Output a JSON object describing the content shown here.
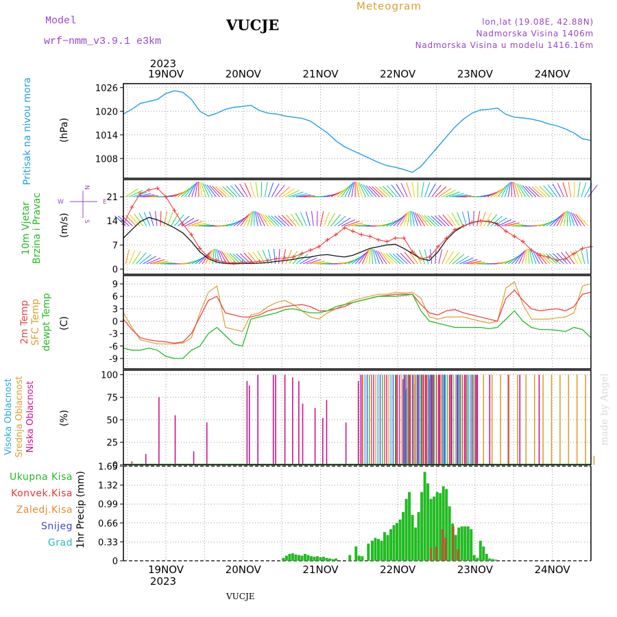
{
  "header": {
    "model_label": "Model",
    "model_name": "wrf−nmm_v3.9.1 e3km",
    "station": "VUCJE",
    "product": "Meteogram",
    "lonlat": "lon,lat (19.08E, 42.88N)",
    "elevation": "Nadmorska Visina 1406m",
    "model_elevation": "Nadmorska Visina u modelu 1416.16m",
    "footer_station": "VUCJE",
    "watermark": "made by Angel"
  },
  "colors": {
    "pressure": "#1fa0e0",
    "wind_label": "#22bb22",
    "wind_speed": "#111111",
    "wind_gust": "#ee3333",
    "temp_2m": "#ee4444",
    "temp_sfc": "#d9a030",
    "dewpoint": "#22bb22",
    "cloud_high": "#22aadd",
    "cloud_mid": "#d9a030",
    "cloud_low": "#cc1188",
    "precip_total": "#22bb22",
    "precip_conv": "#ee3333",
    "precip_frz": "#ee8833",
    "precip_snow": "#4444dd",
    "precip_hail": "#22bbbb",
    "title_purple": "#9944cc",
    "meteogram_gold": "#d9a030"
  },
  "chart_data": [
    {
      "type": "line",
      "name": "sea-level-pressure",
      "ylabel": "Pritisak na nivou mora",
      "unit": "(hPa)",
      "yticks": [
        1008,
        1014,
        1020,
        1026
      ],
      "ylim": [
        1003,
        1027
      ],
      "x_day_labels": [
        "19NOV",
        "20NOV",
        "21NOV",
        "22NOV",
        "23NOV",
        "24NOV"
      ],
      "top_year": "2023",
      "bottom_year": "2023",
      "series": [
        {
          "values": [
            1019.3,
            1020.5,
            1022.0,
            1022.5,
            1023.0,
            1024.5,
            1025.2,
            1024.8,
            1023.0,
            1020.0,
            1018.8,
            1019.5,
            1020.5,
            1021.0,
            1021.2,
            1021.5,
            1020.2,
            1019.5,
            1019.3,
            1018.8,
            1018.5,
            1018.2,
            1017.5,
            1016.0,
            1014.5,
            1012.5,
            1011.0,
            1010.0,
            1009.0,
            1008.0,
            1007.0,
            1006.2,
            1005.8,
            1005.2,
            1004.5,
            1006.0,
            1008.5,
            1011.0,
            1013.5,
            1016.0,
            1018.0,
            1019.5,
            1020.3,
            1020.5,
            1020.8,
            1019.2,
            1018.5,
            1018.3,
            1018.0,
            1017.5,
            1016.8,
            1016.3,
            1015.5,
            1014.5,
            1013.0,
            1012.6
          ]
        }
      ]
    },
    {
      "type": "line",
      "name": "wind-10m",
      "ylabel": "10m Vjetar Brzina i Pravac",
      "unit": "(m/s)",
      "compass": {
        "n": "N",
        "s": "S",
        "e": "E",
        "w": "W"
      },
      "yticks": [
        0,
        7,
        14,
        21
      ],
      "ylim": [
        -1.5,
        26
      ],
      "series": [
        {
          "name": "speed",
          "values": [
            9.0,
            11.5,
            13.8,
            15.0,
            14.3,
            13.2,
            12.0,
            10.5,
            8.0,
            5.0,
            3.0,
            2.0,
            1.6,
            1.5,
            1.6,
            1.6,
            1.7,
            1.9,
            2.2,
            2.5,
            2.8,
            3.3,
            3.5,
            4.0,
            4.2,
            3.8,
            3.5,
            4.0,
            5.0,
            6.0,
            6.5,
            7.0,
            7.2,
            6.0,
            4.5,
            3.0,
            2.5,
            5.0,
            8.5,
            11.0,
            12.5,
            13.5,
            14.0,
            13.8,
            13.2,
            null,
            null,
            null,
            null,
            null,
            null,
            null,
            null,
            null,
            null,
            null
          ]
        },
        {
          "name": "gust",
          "values": [
            13.0,
            18.0,
            22.0,
            23.0,
            23.5,
            21.0,
            17.0,
            13.0,
            10.0,
            6.0,
            3.5,
            2.5,
            2.0,
            1.8,
            2.0,
            2.0,
            2.2,
            2.5,
            3.0,
            3.2,
            3.5,
            4.5,
            5.5,
            6.5,
            8.5,
            10.0,
            12.0,
            11.0,
            10.0,
            9.5,
            8.5,
            8.0,
            9.0,
            9.0,
            5.0,
            3.0,
            3.5,
            6.5,
            9.0,
            11.5,
            12.5,
            13.5,
            14.0,
            13.8,
            13.0,
            11.0,
            9.5,
            8.0,
            5.5,
            4.0,
            3.5,
            2.5,
            3.0,
            4.5,
            6.0,
            6.5
          ]
        }
      ],
      "barb_bands": [
        21,
        12.5,
        1.5
      ]
    },
    {
      "type": "line",
      "name": "temperatures",
      "ylabel_lines": [
        "2m Temp",
        "SFC Temp",
        "dewpt Temp"
      ],
      "unit": "(C)",
      "yticks": [
        -9,
        -6,
        -3,
        0,
        3,
        6,
        9
      ],
      "ylim": [
        -11.5,
        11
      ],
      "series": [
        {
          "name": "2m Temp",
          "values": [
            0.5,
            -2.0,
            -4.0,
            -4.5,
            -4.8,
            -5.0,
            -5.3,
            -5.0,
            -3.0,
            1.0,
            5.0,
            6.0,
            2.0,
            1.5,
            1.0,
            1.0,
            1.5,
            2.5,
            3.0,
            3.5,
            3.8,
            4.0,
            3.5,
            2.5,
            2.5,
            3.0,
            3.5,
            4.5,
            5.0,
            5.5,
            6.0,
            6.2,
            6.5,
            6.5,
            6.5,
            4.0,
            2.0,
            1.5,
            2.5,
            2.8,
            2.0,
            1.5,
            1.0,
            0.5,
            0.0,
            5.5,
            7.5,
            5.0,
            3.0,
            2.5,
            2.8,
            3.0,
            2.5,
            3.5,
            6.5,
            7.0
          ]
        },
        {
          "name": "SFC Temp",
          "values": [
            2.0,
            -1.5,
            -4.5,
            -5.0,
            -5.5,
            -5.5,
            -5.5,
            -5.3,
            -4.0,
            2.0,
            7.0,
            8.5,
            -1.5,
            -2.0,
            -2.5,
            1.5,
            2.0,
            3.5,
            4.5,
            5.0,
            4.0,
            2.5,
            1.0,
            0.5,
            2.0,
            3.0,
            4.0,
            5.0,
            5.5,
            6.0,
            6.5,
            6.5,
            7.0,
            6.8,
            7.0,
            5.5,
            1.0,
            0.5,
            1.0,
            1.0,
            1.0,
            0.5,
            0.0,
            -0.5,
            0.0,
            8.0,
            9.5,
            4.0,
            0.5,
            0.5,
            0.5,
            0.8,
            1.0,
            2.0,
            8.5,
            9.0
          ]
        },
        {
          "name": "dewpt Temp",
          "values": [
            -6.5,
            -7.0,
            -7.0,
            -6.5,
            -7.0,
            -8.5,
            -9.0,
            -9.0,
            -7.0,
            -6.0,
            -3.0,
            -1.5,
            -3.5,
            -5.5,
            -6.0,
            0.5,
            1.0,
            1.5,
            2.0,
            2.8,
            3.0,
            2.5,
            2.0,
            2.0,
            2.5,
            3.5,
            4.0,
            4.5,
            5.0,
            5.5,
            6.0,
            6.0,
            6.0,
            6.2,
            6.5,
            2.5,
            0.0,
            -0.5,
            -1.0,
            -1.5,
            -1.5,
            -1.5,
            -1.5,
            -1.8,
            -1.5,
            0.5,
            2.5,
            0.0,
            -1.5,
            -2.0,
            -2.0,
            -2.2,
            -2.5,
            -1.5,
            -2.0,
            -4.0
          ]
        }
      ]
    },
    {
      "type": "bar",
      "name": "cloudiness",
      "ylabel_lines": [
        "Visoka Oblacnost",
        "Srednja Oblacnost",
        "Niska Oblacnost"
      ],
      "unit": "(%)",
      "yticks": [
        0,
        25,
        50,
        75,
        100
      ],
      "ylim": [
        0,
        105
      ],
      "series": [
        {
          "name": "Niska Oblacnost",
          "x": [
            0.06,
            0.24,
            0.41,
            0.62,
            0.86,
            1.03,
            1.33,
            1.55,
            1.58,
            1.69,
            1.89,
            1.92,
            2.04,
            2.14,
            2.22,
            2.27,
            2.43,
            2.53,
            2.58,
            2.83,
            2.88,
            2.99,
            3.04,
            3.48,
            3.57,
            3.59,
            3.61,
            3.65,
            3.72,
            3.76,
            3.81,
            3.83,
            3.87,
            3.91,
            3.93,
            3.96,
            4.04,
            4.08,
            4.11,
            4.18,
            4.27,
            4.31,
            4.38,
            4.47,
            4.52,
            4.69,
            4.93,
            5.08,
            5.33,
            6.67
          ],
          "values": [
            4,
            12,
            75,
            55,
            15,
            47,
            0,
            93,
            88,
            100,
            100,
            100,
            100,
            97,
            93,
            68,
            63,
            52,
            72,
            47,
            0,
            93,
            100,
            100,
            95,
            100,
            85,
            100,
            90,
            100,
            100,
            100,
            100,
            95,
            100,
            100,
            100,
            100,
            100,
            100,
            100,
            100,
            100,
            100,
            100,
            100,
            100,
            100,
            100,
            10
          ]
        },
        {
          "name": "Srednja Oblacnost",
          "x": [
            3.63,
            3.73,
            3.84,
            3.95,
            4.06,
            4.17,
            4.28,
            4.39,
            4.5,
            4.61,
            4.72,
            4.83,
            4.94,
            5.05,
            5.16,
            5.27,
            5.38,
            5.49,
            5.6,
            5.71,
            5.82,
            5.93,
            6.04
          ],
          "values": [
            100,
            100,
            100,
            100,
            100,
            100,
            100,
            100,
            100,
            100,
            100,
            100,
            100,
            100,
            100,
            100,
            100,
            100,
            100,
            100,
            100,
            100,
            10
          ]
        },
        {
          "name": "Visoka Oblacnost",
          "x": [
            3.6,
            3.7,
            3.8,
            3.9,
            4.0,
            4.1,
            4.2,
            4.3,
            4.4,
            4.5
          ],
          "values": [
            83,
            100,
            100,
            100,
            100,
            100,
            100,
            100,
            100,
            100
          ]
        }
      ]
    },
    {
      "type": "bar",
      "name": "precipitation-1hr",
      "ylabel": "1hr Precip",
      "unit": "(mm)",
      "legend": [
        "Ukupna Kisa",
        "Konvek.Kisa",
        "Zaledj.Kisa",
        "Snijeg",
        "Grad"
      ],
      "yticks": [
        0,
        0.33,
        0.66,
        0.99,
        1.32,
        1.65
      ],
      "ylim": [
        0,
        1.65
      ],
      "series": [
        {
          "name": "Ukupna Kisa",
          "x": [
            2.02,
            2.06,
            2.1,
            2.14,
            2.18,
            2.22,
            2.26,
            2.3,
            2.34,
            2.38,
            2.42,
            2.46,
            2.5,
            2.54,
            2.58,
            2.62,
            2.66,
            2.7,
            2.88,
            2.96,
            3.0,
            3.04,
            3.12,
            3.17,
            3.21,
            3.25,
            3.29,
            3.33,
            3.37,
            3.41,
            3.45,
            3.49,
            3.53,
            3.57,
            3.61,
            3.65,
            3.69,
            3.73,
            3.77,
            3.81,
            3.85,
            3.89,
            3.93,
            3.97,
            4.01,
            4.05,
            4.09,
            4.13,
            4.17,
            4.21,
            4.25,
            4.29,
            4.33,
            4.37,
            4.41,
            4.45,
            4.49,
            4.53,
            4.57,
            4.61,
            4.65,
            4.69,
            4.73,
            4.77,
            4.81,
            4.85,
            4.89,
            4.93,
            4.97,
            5.01,
            5.05,
            5.09,
            5.13,
            5.17,
            5.21,
            5.25,
            5.29,
            5.33,
            5.37,
            5.41,
            5.45,
            5.49,
            5.53,
            5.57,
            5.61,
            5.65,
            5.69,
            5.73,
            5.77,
            5.81,
            5.85,
            5.89,
            5.93,
            5.97,
            6.01
          ],
          "values": [
            0.05,
            0.09,
            0.12,
            0.13,
            0.11,
            0.1,
            0.09,
            0.12,
            0.1,
            0.08,
            0.07,
            0.08,
            0.06,
            0.07,
            0.05,
            0.04,
            0.03,
            0.04,
            0.1,
            0.25,
            0.09,
            0.08,
            0.3,
            0.35,
            0.4,
            0.38,
            0.35,
            0.5,
            0.45,
            0.55,
            0.62,
            0.66,
            0.72,
            0.85,
            1.08,
            1.2,
            0.8,
            0.58,
            0.85,
            1.2,
            1.55,
            1.35,
            1.08,
            1.12,
            1.2,
            1.18,
            1.3,
            1.25,
            0.95,
            0.65,
            0.45,
            0.58,
            0.6,
            0.6,
            0.6,
            0.55,
            0.1,
            0.05,
            0.35,
            0.25,
            0.12,
            0.04,
            0.03,
            0.02,
            0.0,
            0.0,
            0.0,
            0.0,
            0.0,
            0.0,
            0.0,
            0.0,
            0.0,
            0.0,
            0.0,
            0.0,
            0.0,
            0.0,
            0.0,
            0.0,
            0.0,
            0.0,
            0.0,
            0.0,
            0.0,
            0.0,
            0.0,
            0.0,
            0.0,
            0.0,
            0.0,
            0.0,
            0.0,
            0.0,
            0.0
          ]
        },
        {
          "name": "Konvek.Kisa",
          "x": [
            3.93,
            4.0,
            4.08,
            4.12,
            4.22,
            4.28
          ],
          "values": [
            0.22,
            0.25,
            0.55,
            0.4,
            0.6,
            0.2
          ]
        }
      ]
    }
  ]
}
